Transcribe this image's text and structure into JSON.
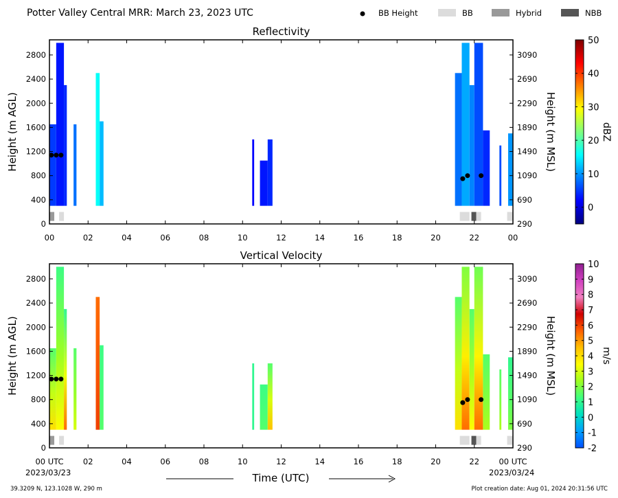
{
  "header": {
    "title": "Potter Valley Central MRR:  March 23, 2023 UTC",
    "legend": [
      {
        "label": "BB Height",
        "kind": "marker",
        "color": "#000000"
      },
      {
        "label": "BB",
        "kind": "patch",
        "color": "#dcdcdc"
      },
      {
        "label": "Hybrid",
        "kind": "patch",
        "color": "#999999"
      },
      {
        "label": "NBB",
        "kind": "patch",
        "color": "#555555"
      }
    ]
  },
  "footer": {
    "xlabel": "Time (UTC)",
    "start_date": "2023/03/23",
    "end_date": "2023/03/24",
    "location": "39.3209 N, 123.1028 W, 290 m",
    "creation": "Plot creation date: Aug 01, 2024 20:31:56 UTC"
  },
  "chart_data": [
    {
      "type": "heatmap",
      "title": "Reflectivity",
      "ylabel": "Height (m AGL)",
      "ylabel_right": "Height (m MSL)",
      "x_ticks": [
        "00",
        "02",
        "04",
        "06",
        "08",
        "10",
        "12",
        "14",
        "16",
        "18",
        "20",
        "22",
        "00"
      ],
      "xlim": [
        0,
        24
      ],
      "ylim": [
        0,
        3050
      ],
      "y_ticks": [
        0,
        400,
        800,
        1200,
        1600,
        2000,
        2400,
        2800
      ],
      "y_ticks_right": [
        290,
        690,
        1090,
        1490,
        1890,
        2290,
        2690,
        3090
      ],
      "colorbar": {
        "label": "dBZ",
        "ticks": [
          0,
          10,
          20,
          30,
          40,
          50
        ],
        "range": [
          -5,
          50
        ],
        "colors": [
          "#00007f",
          "#0000ff",
          "#007fff",
          "#00ffff",
          "#7fff7f",
          "#ffff00",
          "#ff7f00",
          "#ff0000",
          "#7f0000"
        ]
      },
      "bb_height": [
        {
          "x": 0.1,
          "y": 1140
        },
        {
          "x": 0.35,
          "y": 1140
        },
        {
          "x": 0.6,
          "y": 1140
        },
        {
          "x": 21.4,
          "y": 750
        },
        {
          "x": 21.65,
          "y": 800
        },
        {
          "x": 22.35,
          "y": 800
        }
      ],
      "bb_type": [
        {
          "start": 0.0,
          "end": 0.25,
          "type": "Hybrid"
        },
        {
          "start": 0.5,
          "end": 0.75,
          "type": "BB"
        },
        {
          "start": 21.25,
          "end": 21.75,
          "type": "BB"
        },
        {
          "start": 21.85,
          "end": 22.1,
          "type": "NBB"
        },
        {
          "start": 22.1,
          "end": 22.35,
          "type": "BB"
        },
        {
          "start": 23.7,
          "end": 24.0,
          "type": "BB"
        }
      ],
      "echo_segments": [
        {
          "start": 0.0,
          "end": 0.35,
          "top": 1650,
          "value": 5
        },
        {
          "start": 0.35,
          "end": 0.75,
          "top": 3000,
          "value": 3
        },
        {
          "start": 0.75,
          "end": 0.9,
          "top": 2300,
          "value": 4
        },
        {
          "start": 1.25,
          "end": 1.4,
          "top": 1650,
          "value": 8
        },
        {
          "start": 2.4,
          "end": 2.6,
          "top": 2500,
          "value": 16
        },
        {
          "start": 2.6,
          "end": 2.8,
          "top": 1700,
          "value": 12
        },
        {
          "start": 10.5,
          "end": 10.6,
          "top": 1400,
          "value": 2
        },
        {
          "start": 10.9,
          "end": 11.3,
          "top": 1050,
          "value": 3
        },
        {
          "start": 11.3,
          "end": 11.55,
          "top": 1400,
          "value": 4
        },
        {
          "start": 21.0,
          "end": 21.35,
          "top": 2500,
          "value": 8
        },
        {
          "start": 21.35,
          "end": 21.75,
          "top": 3000,
          "value": 11
        },
        {
          "start": 21.75,
          "end": 22.0,
          "top": 2300,
          "value": 9
        },
        {
          "start": 22.0,
          "end": 22.45,
          "top": 3000,
          "value": 6
        },
        {
          "start": 22.45,
          "end": 22.8,
          "top": 1550,
          "value": 4
        },
        {
          "start": 23.3,
          "end": 23.4,
          "top": 1300,
          "value": 6
        },
        {
          "start": 23.75,
          "end": 24.0,
          "top": 1500,
          "value": 10
        }
      ]
    },
    {
      "type": "heatmap",
      "title": "Vertical Velocity",
      "ylabel": "Height (m AGL)",
      "ylabel_right": "Height (m MSL)",
      "x_ticks": [
        "00 UTC",
        "02",
        "04",
        "06",
        "08",
        "10",
        "12",
        "14",
        "16",
        "18",
        "20",
        "22",
        "00 UTC"
      ],
      "xlim": [
        0,
        24
      ],
      "ylim": [
        0,
        3050
      ],
      "y_ticks": [
        0,
        400,
        800,
        1200,
        1600,
        2000,
        2400,
        2800
      ],
      "y_ticks_right": [
        290,
        690,
        1090,
        1490,
        1890,
        2290,
        2690,
        3090
      ],
      "colorbar": {
        "label": "m/s",
        "ticks": [
          -2,
          -1,
          0,
          1,
          2,
          3,
          4,
          5,
          6,
          7,
          8,
          9,
          10
        ],
        "range": [
          -2,
          10
        ],
        "colors": [
          "#0050ff",
          "#00a0ff",
          "#00e0c0",
          "#40ff80",
          "#a0ff20",
          "#ffff00",
          "#ffc000",
          "#ff6000",
          "#d00000",
          "#f080c0",
          "#d040c0",
          "#902090"
        ]
      },
      "bb_height": [
        {
          "x": 0.1,
          "y": 1140
        },
        {
          "x": 0.35,
          "y": 1140
        },
        {
          "x": 0.6,
          "y": 1140
        },
        {
          "x": 21.4,
          "y": 750
        },
        {
          "x": 21.65,
          "y": 800
        },
        {
          "x": 22.35,
          "y": 800
        }
      ],
      "bb_type": [
        {
          "start": 0.0,
          "end": 0.25,
          "type": "Hybrid"
        },
        {
          "start": 0.5,
          "end": 0.75,
          "type": "BB"
        },
        {
          "start": 21.25,
          "end": 21.75,
          "type": "BB"
        },
        {
          "start": 21.85,
          "end": 22.1,
          "type": "NBB"
        },
        {
          "start": 22.1,
          "end": 22.35,
          "type": "BB"
        },
        {
          "start": 23.7,
          "end": 24.0,
          "type": "BB"
        }
      ],
      "echo_segments": [
        {
          "start": 0.0,
          "end": 0.35,
          "top": 1650,
          "value": 1.5,
          "low_value": 4
        },
        {
          "start": 0.35,
          "end": 0.75,
          "top": 3000,
          "value": 1.2,
          "low_value": 3.5
        },
        {
          "start": 0.75,
          "end": 0.9,
          "top": 2300,
          "value": 1.0,
          "low_value": 5.5
        },
        {
          "start": 1.25,
          "end": 1.4,
          "top": 1650,
          "value": 1.5,
          "low_value": 3
        },
        {
          "start": 2.4,
          "end": 2.6,
          "top": 2500,
          "value": 5.5,
          "low_value": 6
        },
        {
          "start": 2.6,
          "end": 2.8,
          "top": 1700,
          "value": 1.2,
          "low_value": 1.5
        },
        {
          "start": 10.5,
          "end": 10.6,
          "top": 1400,
          "value": 1.0,
          "low_value": 1.0
        },
        {
          "start": 10.9,
          "end": 11.3,
          "top": 1050,
          "value": 1.2,
          "low_value": 1.5
        },
        {
          "start": 11.3,
          "end": 11.55,
          "top": 1400,
          "value": 1.5,
          "low_value": 4.5
        },
        {
          "start": 21.0,
          "end": 21.35,
          "top": 2500,
          "value": 1.5,
          "low_value": 4
        },
        {
          "start": 21.35,
          "end": 21.75,
          "top": 3000,
          "value": 2.0,
          "low_value": 5.5
        },
        {
          "start": 21.75,
          "end": 22.0,
          "top": 2300,
          "value": 1.5,
          "low_value": 3.5
        },
        {
          "start": 22.0,
          "end": 22.45,
          "top": 3000,
          "value": 1.8,
          "low_value": 5.5
        },
        {
          "start": 22.45,
          "end": 22.8,
          "top": 1550,
          "value": 1.5,
          "low_value": 2.5
        },
        {
          "start": 23.3,
          "end": 23.4,
          "top": 1300,
          "value": 1.5,
          "low_value": 2.5
        },
        {
          "start": 23.75,
          "end": 24.0,
          "top": 1500,
          "value": 1.0,
          "low_value": 2
        }
      ]
    }
  ]
}
